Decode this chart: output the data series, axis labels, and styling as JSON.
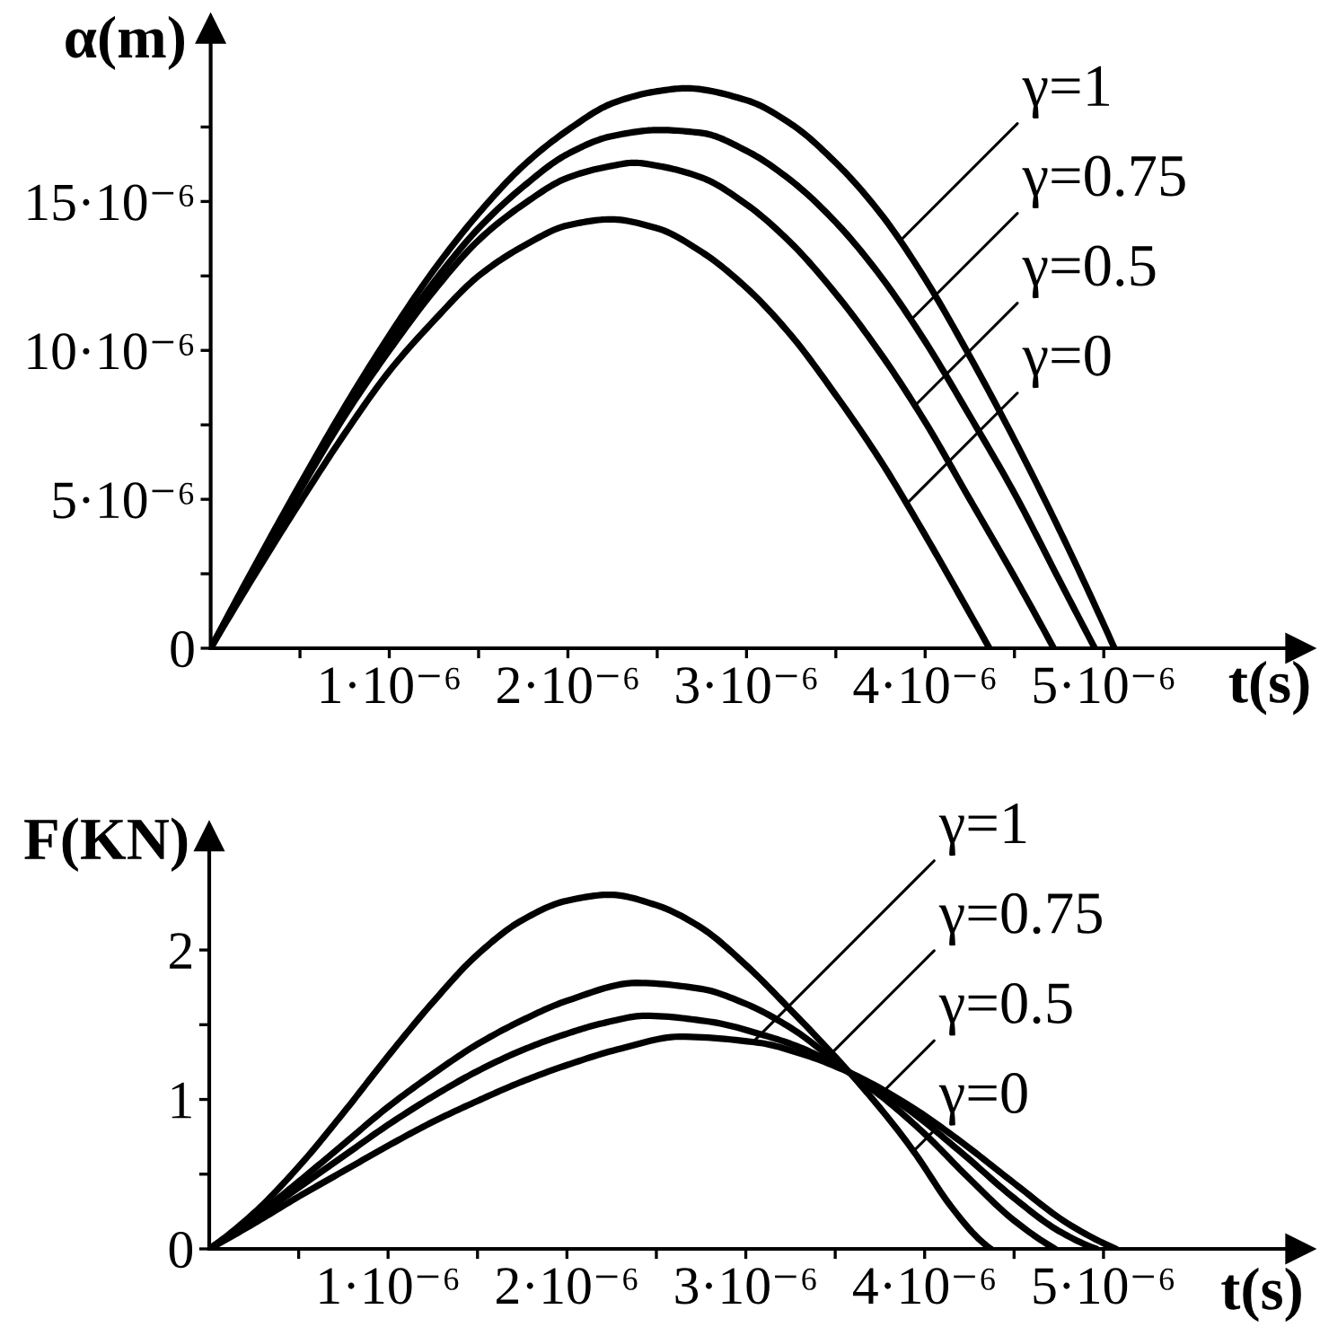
{
  "chart_data": [
    {
      "type": "line",
      "xlabel": "t(s)",
      "ylabel": "α(m)",
      "grid": false,
      "legend": "top right",
      "line_style": "solid",
      "xlim": [
        0,
        6.1e-06
      ],
      "ylim": [
        0,
        2.08e-05
      ],
      "xticks": [
        {
          "value": 5e-07,
          "label": null
        },
        {
          "value": 1e-06,
          "label": "1·10⁻⁶"
        },
        {
          "value": 1.5e-06,
          "label": null
        },
        {
          "value": 2e-06,
          "label": "2·10⁻⁶"
        },
        {
          "value": 2.5e-06,
          "label": null
        },
        {
          "value": 3e-06,
          "label": "3·10⁻⁶"
        },
        {
          "value": 3.5e-06,
          "label": null
        },
        {
          "value": 4e-06,
          "label": "4·10⁻⁶"
        },
        {
          "value": 4.5e-06,
          "label": null
        },
        {
          "value": 5e-06,
          "label": "5·10⁻⁶"
        }
      ],
      "yticks": [
        {
          "value": 0,
          "label": "0"
        },
        {
          "value": 2.5e-06,
          "label": null
        },
        {
          "value": 5e-06,
          "label": "5·10⁻⁶"
        },
        {
          "value": 7.5e-06,
          "label": null
        },
        {
          "value": 1e-05,
          "label": "10·10⁻⁶"
        },
        {
          "value": 1.25e-05,
          "label": null
        },
        {
          "value": 1.5e-05,
          "label": "15·10⁻⁶"
        },
        {
          "value": 1.75e-05,
          "label": null
        }
      ],
      "series": [
        {
          "name": "γ=1",
          "color": "#000000",
          "x": [
            0,
            2.5e-07,
            5e-07,
            7.5e-07,
            1e-06,
            1.25e-06,
            1.5e-06,
            1.75e-06,
            2e-06,
            2.25e-06,
            2.5e-06,
            2.66e-06,
            3e-06,
            3.25e-06,
            3.5e-06,
            3.75e-06,
            4e-06,
            4.25e-06,
            4.5e-06,
            4.75e-06,
            4.9e-06,
            5.06e-06
          ],
          "values": [
            0,
            2.8e-06,
            5.5e-06,
            8.1e-06,
            1.05e-05,
            1.27e-05,
            1.46e-05,
            1.62e-05,
            1.74e-05,
            1.83e-05,
            1.87e-05,
            1.88e-05,
            1.84e-05,
            1.76e-05,
            1.63e-05,
            1.46e-05,
            1.24e-05,
            9.8e-06,
            7e-06,
            4e-06,
            2.1e-06,
            0
          ]
        },
        {
          "name": "γ=0.75",
          "color": "#000000",
          "x": [
            0,
            2.5e-07,
            5e-07,
            7.5e-07,
            1e-06,
            1.25e-06,
            1.5e-06,
            1.75e-06,
            2e-06,
            2.25e-06,
            2.51e-06,
            2.75e-06,
            3e-06,
            3.25e-06,
            3.5e-06,
            3.75e-06,
            4e-06,
            4.25e-06,
            4.5e-06,
            4.75e-06,
            4.95e-06
          ],
          "values": [
            0,
            2.7e-06,
            5.4e-06,
            7.9e-06,
            1.02e-05,
            1.23e-05,
            1.41e-05,
            1.55e-05,
            1.66e-05,
            1.72e-05,
            1.74e-05,
            1.73e-05,
            1.67e-05,
            1.57e-05,
            1.43e-05,
            1.25e-05,
            1.03e-05,
            7.8e-06,
            5.2e-06,
            2.3e-06,
            0
          ]
        },
        {
          "name": "γ=0.5",
          "color": "#000000",
          "x": [
            0,
            2.5e-07,
            5e-07,
            7.5e-07,
            1e-06,
            1.25e-06,
            1.5e-06,
            1.75e-06,
            2e-06,
            2.25e-06,
            2.37e-06,
            2.5e-06,
            2.75e-06,
            3e-06,
            3.25e-06,
            3.5e-06,
            3.75e-06,
            4e-06,
            4.25e-06,
            4.5e-06,
            4.72e-06
          ],
          "values": [
            0,
            2.7e-06,
            5.3e-06,
            7.8e-06,
            1e-05,
            1.2e-05,
            1.37e-05,
            1.49e-05,
            1.58e-05,
            1.62e-05,
            1.63e-05,
            1.62e-05,
            1.58e-05,
            1.49e-05,
            1.36e-05,
            1.19e-05,
            9.9e-06,
            7.6e-06,
            5e-06,
            2.4e-06,
            0
          ]
        },
        {
          "name": "γ=0",
          "color": "#000000",
          "x": [
            0,
            2.5e-07,
            5e-07,
            7.5e-07,
            1e-06,
            1.25e-06,
            1.5e-06,
            1.75e-06,
            2e-06,
            2.24e-06,
            2.5e-06,
            2.75e-06,
            3e-06,
            3.25e-06,
            3.5e-06,
            3.75e-06,
            4e-06,
            4.2e-06,
            4.36e-06
          ],
          "values": [
            0,
            2.5e-06,
            4.9e-06,
            7.2e-06,
            9.3e-06,
            1.1e-05,
            1.25e-05,
            1.35e-05,
            1.42e-05,
            1.44e-05,
            1.41e-05,
            1.33e-05,
            1.21e-05,
            1.05e-05,
            8.5e-06,
            6.3e-06,
            3.8e-06,
            1.7e-06,
            0
          ]
        }
      ]
    },
    {
      "type": "line",
      "xlabel": "t(s)",
      "ylabel": "F(KN)",
      "grid": false,
      "legend": "right",
      "line_style": "solid",
      "xlim": [
        0,
        6.1e-06
      ],
      "ylim": [
        0,
        2.76
      ],
      "xticks": [
        {
          "value": 5e-07,
          "label": null
        },
        {
          "value": 1e-06,
          "label": "1·10⁻⁶"
        },
        {
          "value": 1.5e-06,
          "label": null
        },
        {
          "value": 2e-06,
          "label": "2·10⁻⁶"
        },
        {
          "value": 2.5e-06,
          "label": null
        },
        {
          "value": 3e-06,
          "label": "3·10⁻⁶"
        },
        {
          "value": 3.5e-06,
          "label": null
        },
        {
          "value": 4e-06,
          "label": "4·10⁻⁶"
        },
        {
          "value": 4.5e-06,
          "label": null
        },
        {
          "value": 5e-06,
          "label": "5·10⁻⁶"
        }
      ],
      "yticks": [
        0,
        {
          "value": 0.5,
          "label": null
        },
        1,
        {
          "value": 1.5,
          "label": null
        },
        2
      ],
      "series": [
        {
          "name": "γ=1",
          "color": "#000000",
          "x": [
            0,
            2.5e-07,
            5e-07,
            7.5e-07,
            1e-06,
            1.25e-06,
            1.5e-06,
            1.75e-06,
            2e-06,
            2.3e-06,
            2.63e-06,
            3.07e-06,
            3.3e-06,
            3.58e-06,
            3.9e-06,
            4.2e-06,
            4.5e-06,
            4.8e-06,
            5.07e-06
          ],
          "values": [
            0,
            0.17,
            0.35,
            0.52,
            0.69,
            0.85,
            0.99,
            1.12,
            1.23,
            1.34,
            1.42,
            1.38,
            1.31,
            1.18,
            0.97,
            0.72,
            0.44,
            0.17,
            0
          ]
        },
        {
          "name": "γ=0.75",
          "color": "#000000",
          "x": [
            0,
            2.5e-07,
            5e-07,
            7.5e-07,
            1e-06,
            1.25e-06,
            1.5e-06,
            1.75e-06,
            2e-06,
            2.2e-06,
            2.44e-06,
            2.8e-06,
            3.1e-06,
            3.3e-06,
            3.58e-06,
            3.9e-06,
            4.2e-06,
            4.5e-06,
            4.75e-06,
            4.96e-06
          ],
          "values": [
            0,
            0.2,
            0.41,
            0.62,
            0.83,
            1.02,
            1.19,
            1.33,
            1.44,
            1.51,
            1.56,
            1.52,
            1.43,
            1.35,
            1.18,
            0.94,
            0.65,
            0.34,
            0.12,
            0
          ]
        },
        {
          "name": "γ=0.5",
          "color": "#000000",
          "x": [
            0,
            2.5e-07,
            5e-07,
            7.5e-07,
            1e-06,
            1.25e-06,
            1.5e-06,
            1.75e-06,
            2e-06,
            2.39e-06,
            2.75e-06,
            3e-06,
            3.25e-06,
            3.58e-06,
            3.78e-06,
            4e-06,
            4.25e-06,
            4.5e-06,
            4.73e-06
          ],
          "values": [
            0,
            0.21,
            0.45,
            0.7,
            0.95,
            1.17,
            1.37,
            1.53,
            1.66,
            1.78,
            1.74,
            1.64,
            1.48,
            1.18,
            1.0,
            0.77,
            0.47,
            0.19,
            0
          ]
        },
        {
          "name": "γ=0",
          "color": "#000000",
          "x": [
            0,
            2.5e-07,
            5e-07,
            7.5e-07,
            1e-06,
            1.25e-06,
            1.5e-06,
            1.75e-06,
            2e-06,
            2.24e-06,
            2.5e-06,
            2.75e-06,
            3e-06,
            3.25e-06,
            3.58e-06,
            3.8e-06,
            3.94e-06,
            4.15e-06,
            4.3e-06,
            4.37e-06
          ],
          "values": [
            0,
            0.24,
            0.55,
            0.91,
            1.29,
            1.65,
            1.97,
            2.2,
            2.33,
            2.37,
            2.3,
            2.15,
            1.9,
            1.6,
            1.18,
            0.87,
            0.65,
            0.28,
            0.07,
            0
          ]
        }
      ]
    }
  ]
}
